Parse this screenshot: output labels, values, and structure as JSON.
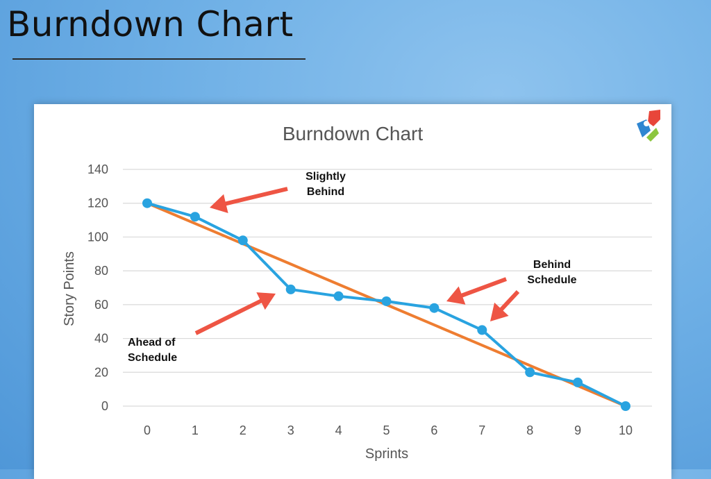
{
  "slide": {
    "title": "Burndown Chart"
  },
  "chart_data": {
    "type": "line",
    "title": "Burndown Chart",
    "xlabel": "Sprints",
    "ylabel": "Story Points",
    "categories": [
      "0",
      "1",
      "2",
      "3",
      "4",
      "5",
      "6",
      "7",
      "8",
      "9",
      "10"
    ],
    "x": [
      0,
      1,
      2,
      3,
      4,
      5,
      6,
      7,
      8,
      9,
      10
    ],
    "yticks": [
      "0",
      "20",
      "40",
      "60",
      "80",
      "100",
      "120",
      "140"
    ],
    "ylim": [
      0,
      140
    ],
    "xlim": [
      0,
      10
    ],
    "grid": true,
    "series": [
      {
        "values": [
          120,
          112,
          98,
          69,
          65,
          62,
          58,
          45,
          20,
          14,
          0
        ],
        "color": "#29a3e0",
        "markers": true
      },
      {
        "values": [
          120,
          108,
          96,
          84,
          72,
          60,
          48,
          36,
          24,
          12,
          0
        ],
        "color": "#ee7d31",
        "markers": false
      }
    ],
    "annotations": [
      {
        "lines": [
          "Slightly",
          "Behind"
        ]
      },
      {
        "lines": [
          "Ahead of",
          "Schedule"
        ]
      },
      {
        "lines": [
          "Behind",
          "Schedule"
        ]
      }
    ],
    "arrow_color": "#ee5544"
  }
}
